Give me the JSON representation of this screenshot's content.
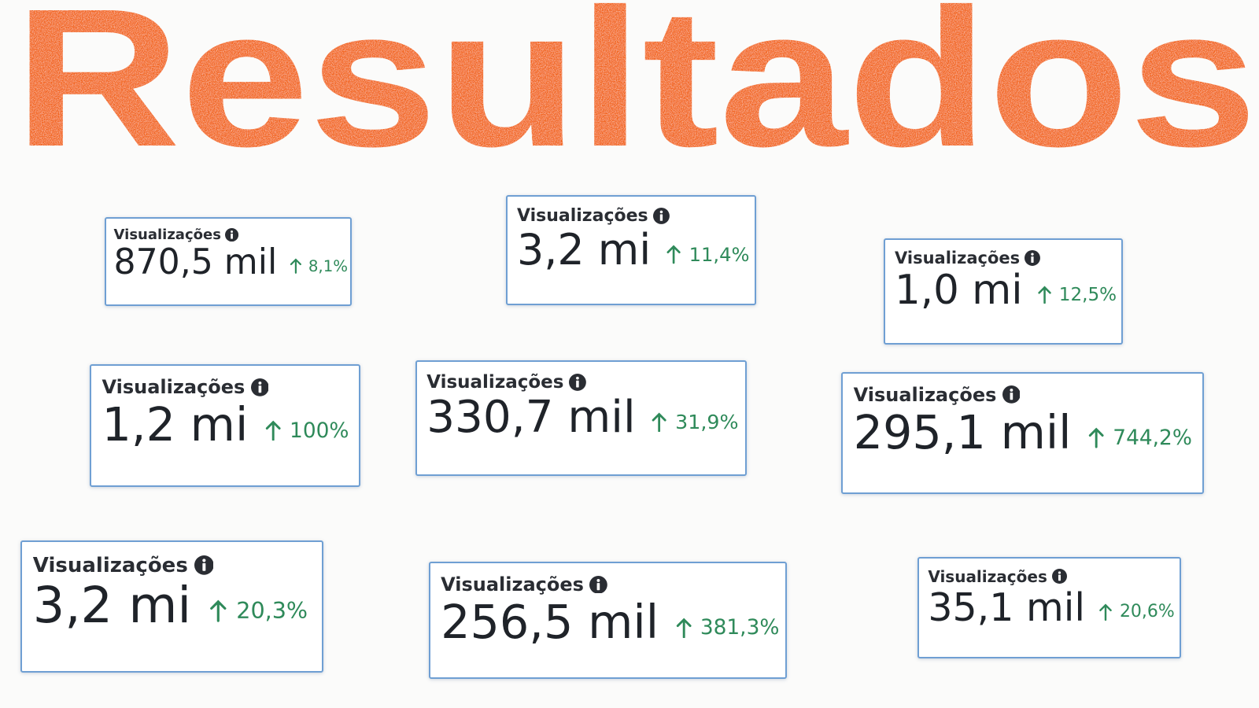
{
  "header": {
    "title": "Resultados"
  },
  "cards": [
    {
      "label": "Visualizações",
      "value": "870,5 mil",
      "change": "8,1%"
    },
    {
      "label": "Visualizações",
      "value": "3,2 mi",
      "change": "11,4%"
    },
    {
      "label": "Visualizações",
      "value": "1,0 mi",
      "change": "12,5%"
    },
    {
      "label": "Visualizações",
      "value": "1,2 mi",
      "change": "100%"
    },
    {
      "label": "Visualizações",
      "value": "330,7 mil",
      "change": "31,9%"
    },
    {
      "label": "Visualizações",
      "value": "295,1 mil",
      "change": "744,2%"
    },
    {
      "label": "Visualizações",
      "value": "3,2 mi",
      "change": "20,3%"
    },
    {
      "label": "Visualizações",
      "value": "256,5 mil",
      "change": "381,3%"
    },
    {
      "label": "Visualizações",
      "value": "35,1 mil",
      "change": "20,6%"
    }
  ]
}
